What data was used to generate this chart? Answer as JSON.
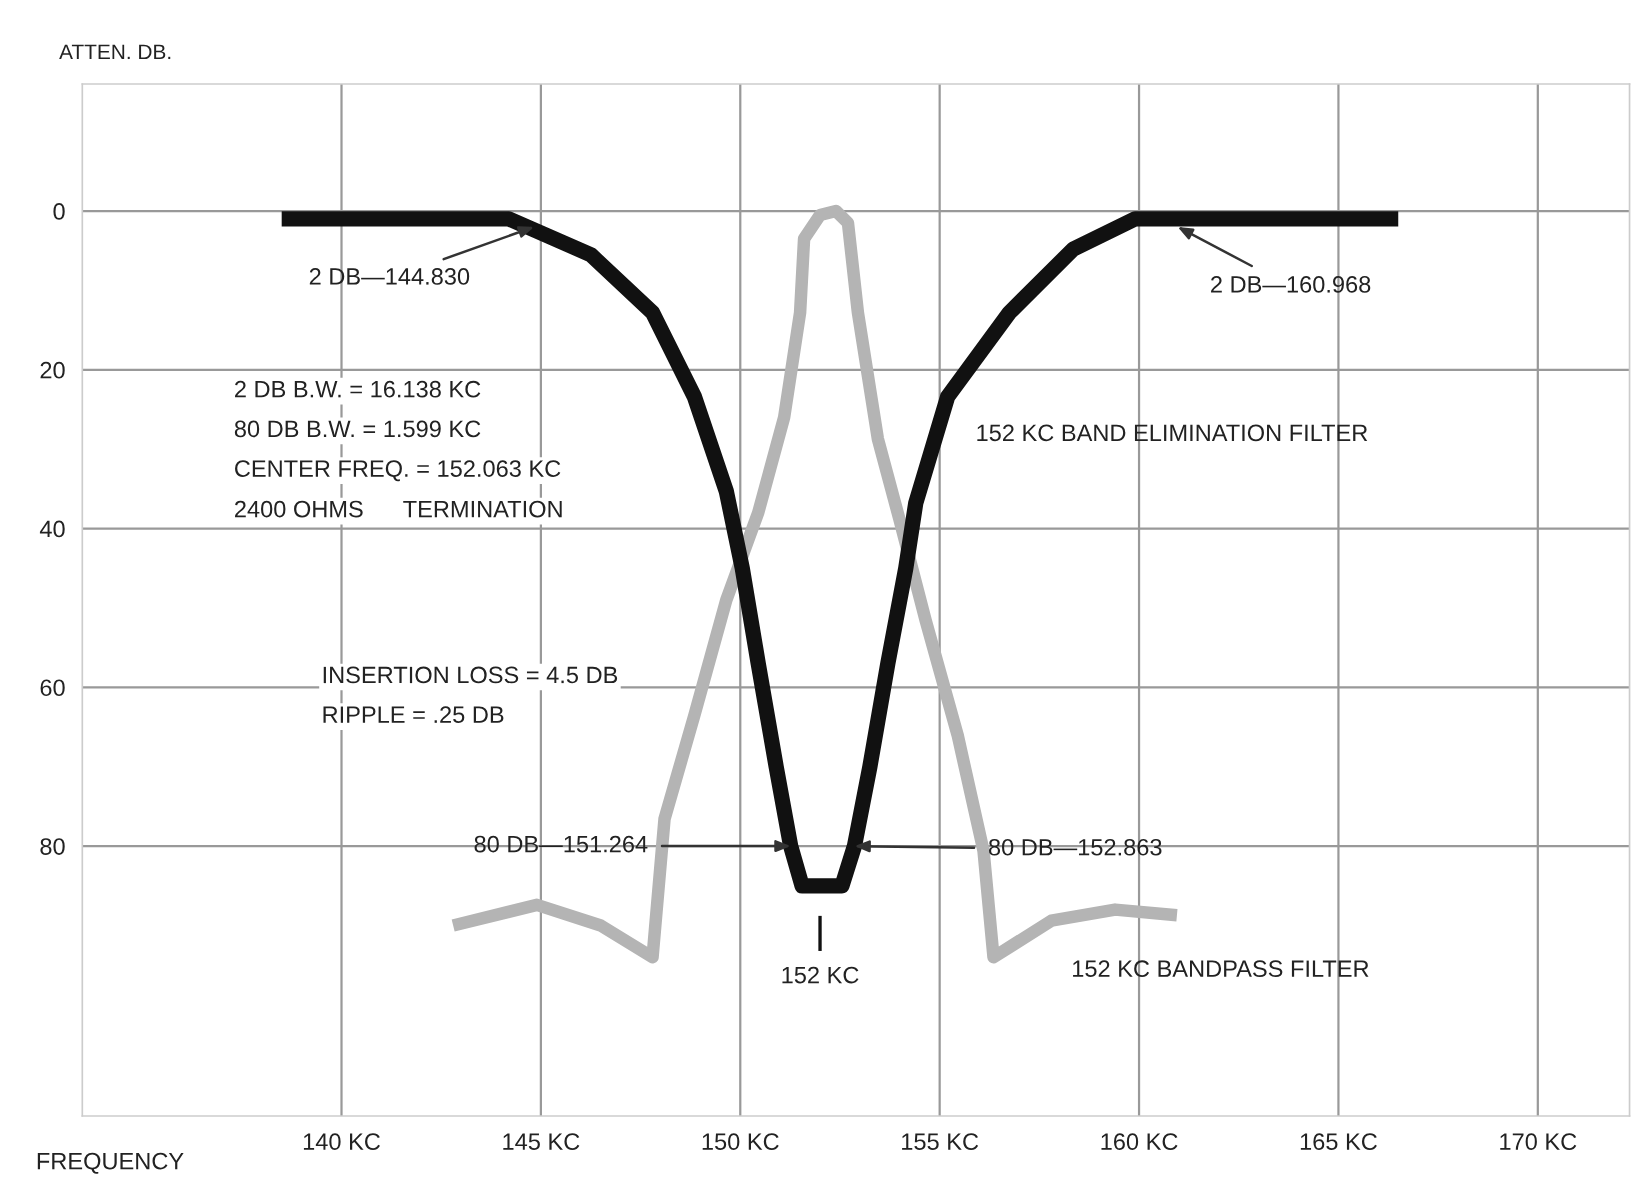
{
  "chart_data": {
    "type": "line",
    "xlabel": "FREQUENCY",
    "ylabel": "ATTEN. DB.",
    "xlim": [
      133.5,
      172.3
    ],
    "ylim": [
      114,
      -16
    ],
    "xticks": [
      {
        "value": 140,
        "label": "140 KC"
      },
      {
        "value": 145,
        "label": "145 KC"
      },
      {
        "value": 150,
        "label": "150 KC"
      },
      {
        "value": 155,
        "label": "155 KC"
      },
      {
        "value": 160,
        "label": "160 KC"
      },
      {
        "value": 165,
        "label": "165 KC"
      },
      {
        "value": 170,
        "label": "170 KC"
      }
    ],
    "yticks": [
      0,
      20,
      40,
      60,
      80
    ],
    "grid": true,
    "legend": false,
    "marker": "none",
    "line_style": "solid",
    "series": [
      {
        "name": "152 KC BAND ELIMINATION FILTER",
        "color": "#111111",
        "x": [
          138.5,
          144.2,
          146.25,
          147.8,
          148.85,
          149.65,
          150.05,
          150.45,
          150.9,
          151.264,
          151.55,
          152.55,
          152.863,
          153.25,
          153.7,
          154.15,
          154.4,
          155.2,
          156.75,
          158.35,
          159.9,
          166.5
        ],
        "values": [
          1,
          1,
          5.5,
          12.8,
          23.4,
          35.3,
          45,
          57,
          70,
          80,
          85,
          85,
          80,
          70,
          57,
          45,
          36.8,
          23.4,
          12.8,
          4.8,
          1,
          1
        ]
      },
      {
        "name": "152 KC BANDPASS FILTER",
        "color": "#b4b4b4",
        "x": [
          142.8,
          144.9,
          146.5,
          147.8,
          148.1,
          148.85,
          149.65,
          150.45,
          151.1,
          151.5,
          151.6,
          152.0,
          152.4,
          152.7,
          152.95,
          153.45,
          154.0,
          154.65,
          155.45,
          156.1,
          156.35,
          157.8,
          159.4,
          160.95
        ],
        "values": [
          90,
          87.4,
          90,
          94,
          76.6,
          63.5,
          49,
          38,
          26,
          12.8,
          3.5,
          0.5,
          0,
          1.5,
          12.8,
          28.7,
          39,
          51.6,
          66,
          80.6,
          94,
          89.4,
          88,
          88.7
        ]
      }
    ],
    "annotations": [
      {
        "text": "2 DB—144.830",
        "x": 144.83,
        "y": 2
      },
      {
        "text": "2 DB—160.968",
        "x": 160.968,
        "y": 2
      },
      "2 DB B.W. = 16.138 KC",
      "80 DB B.W. = 1.599 KC",
      "CENTER FREQ. = 152.063 KC",
      "2400 OHMS      TERMINATION",
      "INSERTION LOSS = 4.5 DB",
      "RIPPLE = .25 DB",
      {
        "text": "80 DB—151.264",
        "x": 151.264,
        "y": 80
      },
      {
        "text": "80 DB—152.863",
        "x": 152.863,
        "y": 80
      },
      "152 KC"
    ]
  }
}
